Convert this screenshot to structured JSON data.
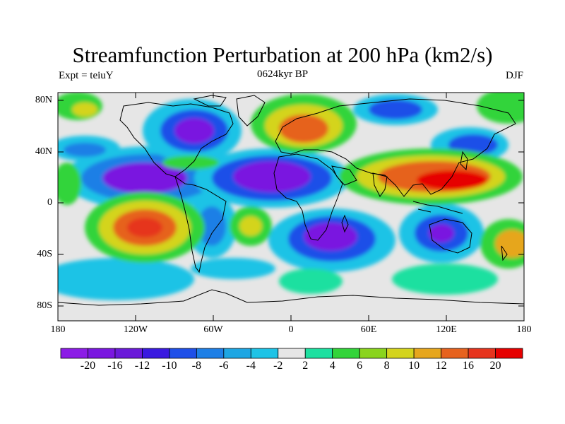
{
  "title": "Streamfunction Perturbation at 200 hPa (km2/s)",
  "subtitle_left": "Expt = teiuY",
  "subtitle_center": "0624kyr BP",
  "subtitle_right": "DJF",
  "y_ticks": [
    "80N",
    "40N",
    "0",
    "40S",
    "80S"
  ],
  "x_ticks": [
    "180",
    "120W",
    "60W",
    "0",
    "60E",
    "120E",
    "180"
  ],
  "colorbar": {
    "colors": [
      "#8c1ce6",
      "#7a17e0",
      "#6a1ad9",
      "#3a1ae0",
      "#1f4fe8",
      "#1e7fe6",
      "#1ea6e3",
      "#1ec3e6",
      "#e6e6e6",
      "#1ee0a0",
      "#33d43a",
      "#8ad41e",
      "#d4d41e",
      "#e6a61e",
      "#e6621e",
      "#e6341e",
      "#e60000"
    ],
    "labels": [
      "-20",
      "-16",
      "-12",
      "-10",
      "-8",
      "-6",
      "-4",
      "-2",
      "2",
      "4",
      "6",
      "8",
      "10",
      "12",
      "16",
      "20"
    ]
  }
}
